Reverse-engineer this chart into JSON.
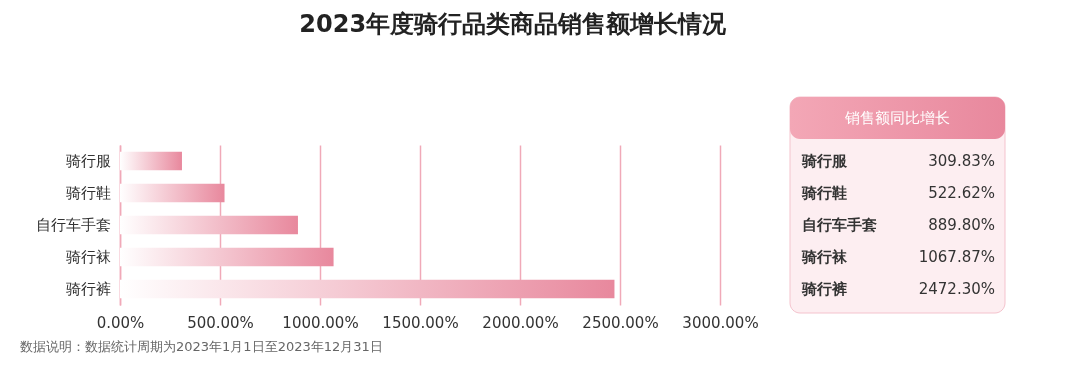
{
  "chart_data": {
    "type": "bar",
    "orientation": "horizontal",
    "title": "2023年度骑行品类商品销售额增长情况",
    "categories": [
      "骑行服",
      "骑行鞋",
      "自行车手套",
      "骑行袜",
      "骑行裤"
    ],
    "values": [
      309.83,
      522.62,
      889.8,
      1067.87,
      2472.3
    ],
    "value_labels": [
      "309.83%",
      "522.62%",
      "889.80%",
      "1067.87%",
      "2472.30%"
    ],
    "color": "#e8889d",
    "xlim": [
      0,
      3000
    ],
    "xticks": [
      {
        "value": 0,
        "label": "0.00%"
      },
      {
        "value": 500,
        "label": "500.00%"
      },
      {
        "value": 1000,
        "label": "1000.00%"
      },
      {
        "value": 1500,
        "label": "1500.00%"
      },
      {
        "value": 2000,
        "label": "2000.00%"
      },
      {
        "value": 2500,
        "label": "2500.00%"
      },
      {
        "value": 3000,
        "label": "3000.00%"
      }
    ],
    "grid": "x",
    "annotations": [
      "销售额同比增长",
      "数据说明：数据统计周期为2023年1月1日至2023年12月31日"
    ]
  }
}
